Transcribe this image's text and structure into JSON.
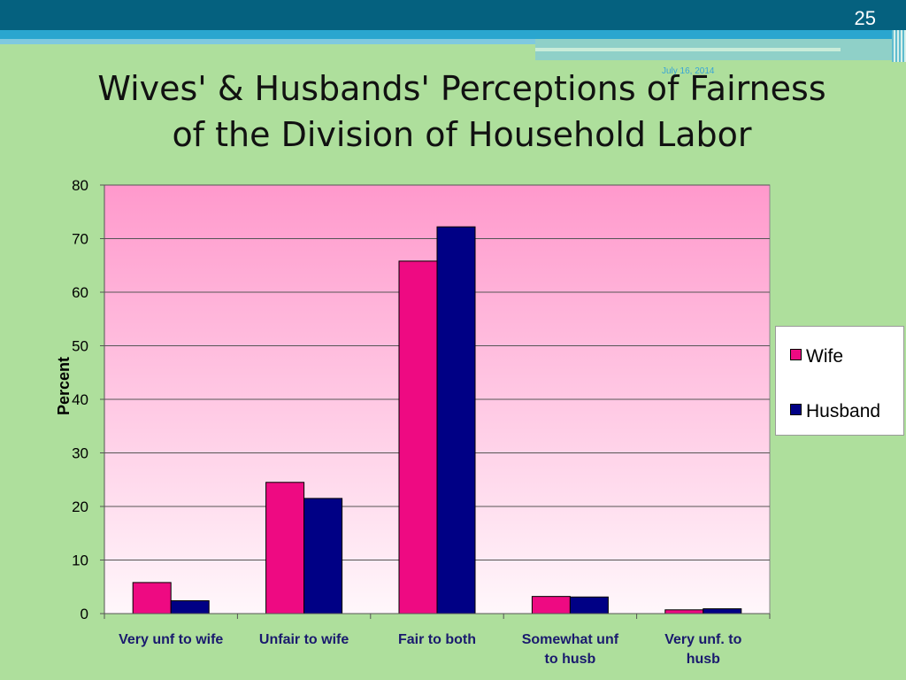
{
  "slide": {
    "number": "25",
    "date": "July 16, 2014",
    "title_line1": "Wives' & Husbands' Perceptions of Fairness",
    "title_line2": "of the Division of Household Labor"
  },
  "colors": {
    "background": "#aedf9c",
    "plot_top": "#ff99cc",
    "plot_bottom": "#fff7fb",
    "wife": "#ee0a82",
    "husband": "#000085"
  },
  "chart_data": {
    "type": "bar",
    "categories": [
      [
        "Very unf to wife"
      ],
      [
        "Unfair to wife"
      ],
      [
        "Fair to both"
      ],
      [
        "Somewhat unf",
        "to husb"
      ],
      [
        "Very unf. to",
        "husb"
      ]
    ],
    "series": [
      {
        "name": "Wife",
        "values": [
          5.8,
          24.5,
          65.8,
          3.2,
          0.7
        ]
      },
      {
        "name": "Husband",
        "values": [
          2.4,
          21.5,
          72.2,
          3.1,
          0.9
        ]
      }
    ],
    "ylabel": "Percent",
    "xlabel": "",
    "ylim": [
      0,
      80
    ],
    "yticks": [
      0,
      10,
      20,
      30,
      40,
      50,
      60,
      70,
      80
    ],
    "grid": true,
    "legend_position": "right"
  }
}
